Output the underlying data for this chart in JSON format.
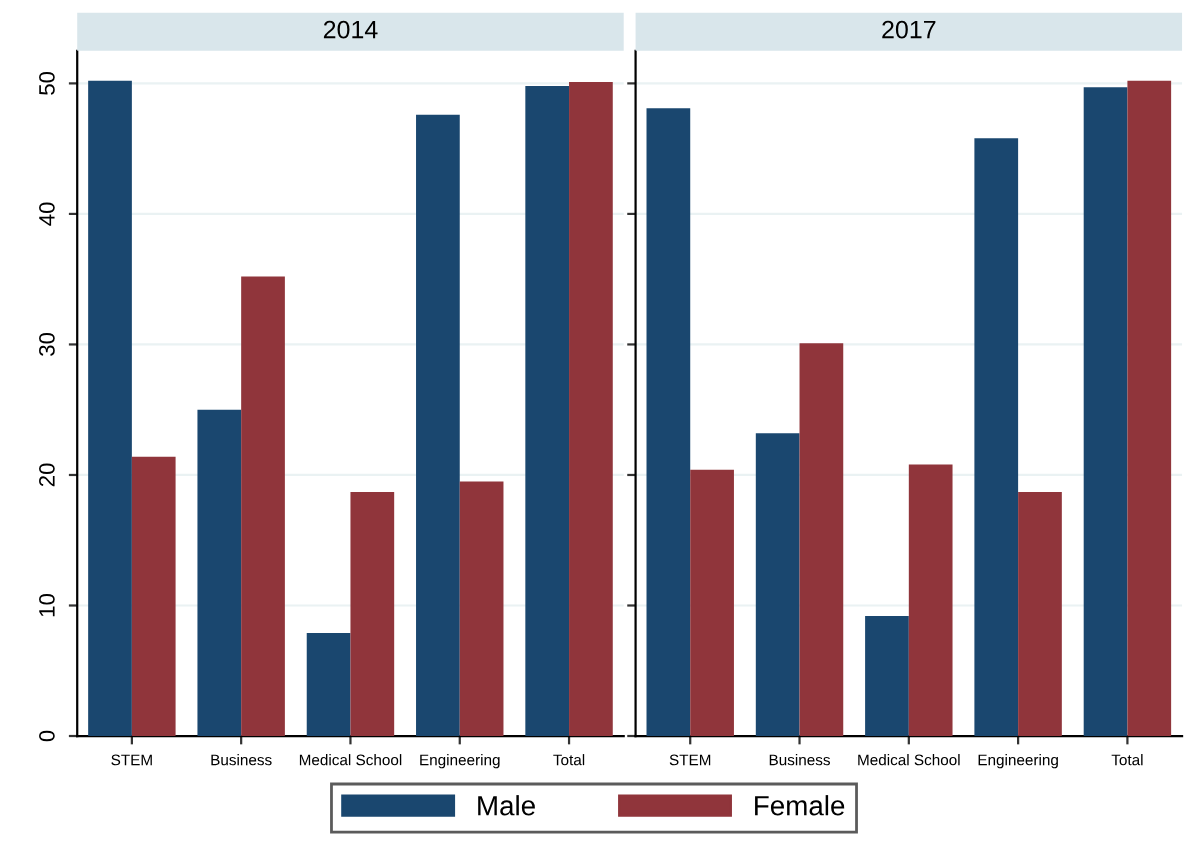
{
  "chart_data": [
    {
      "type": "bar",
      "title": "2014",
      "categories": [
        "STEM",
        "Business",
        "Medical School",
        "Engineering",
        "Total"
      ],
      "series": [
        {
          "name": "Male",
          "color": "#1a476f",
          "values": [
            50.2,
            25.0,
            7.9,
            47.6,
            49.8
          ]
        },
        {
          "name": "Female",
          "color": "#90353b",
          "values": [
            21.4,
            35.2,
            18.7,
            19.5,
            50.1
          ]
        }
      ],
      "ylim": [
        0,
        52.5
      ],
      "yticks": [
        0,
        10,
        20,
        30,
        40,
        50
      ],
      "grid": "y",
      "legend": "bottom"
    },
    {
      "type": "bar",
      "title": "2017",
      "categories": [
        "STEM",
        "Business",
        "Medical School",
        "Engineering",
        "Total"
      ],
      "series": [
        {
          "name": "Male",
          "color": "#1a476f",
          "values": [
            48.1,
            23.2,
            9.2,
            45.8,
            49.7
          ]
        },
        {
          "name": "Female",
          "color": "#90353b",
          "values": [
            20.4,
            30.1,
            20.8,
            18.7,
            50.2
          ]
        }
      ],
      "ylim": [
        0,
        52.5
      ],
      "yticks": [
        0,
        10,
        20,
        30,
        40,
        50
      ],
      "grid": "y",
      "tick_labels": "x"
    }
  ]
}
